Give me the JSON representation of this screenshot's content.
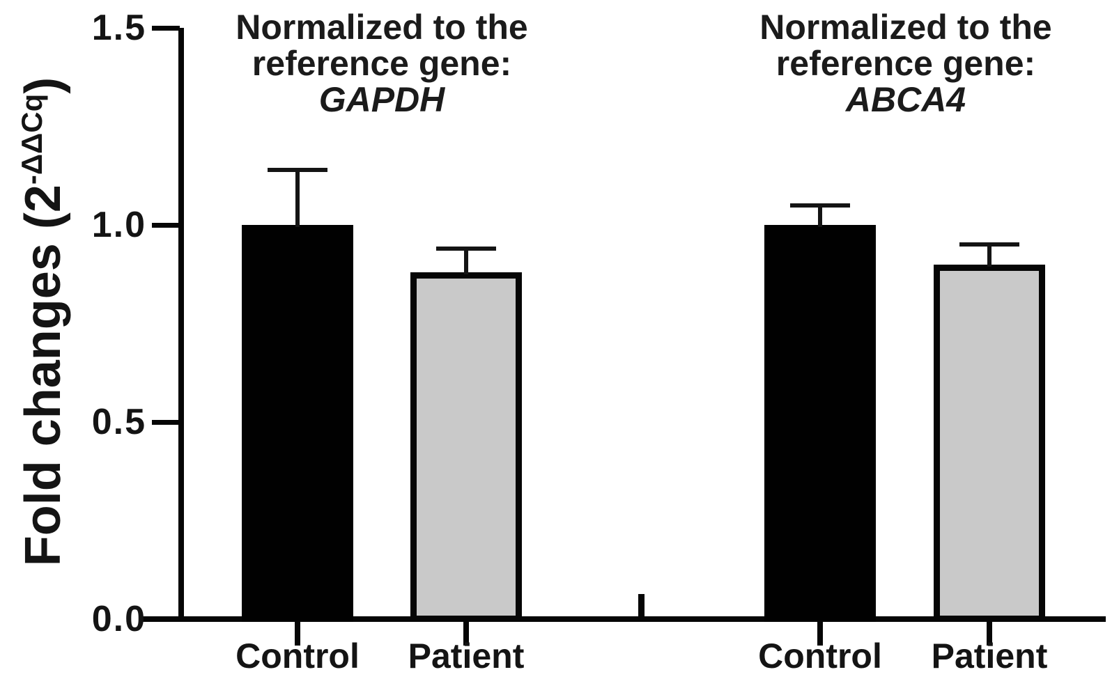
{
  "figure": {
    "background": "#ffffff",
    "text_color": "#141414",
    "ylabel": {
      "prefix": "Fold changes (2",
      "superscript": "-ΔΔCq",
      "suffix": ")"
    }
  },
  "chart_data": {
    "type": "bar",
    "title": "",
    "xlabel": "",
    "ylabel": "Fold changes (2^-ΔΔCq)",
    "ylim": [
      0,
      1.5
    ],
    "yticks": [
      {
        "value": 1.5,
        "label": "1.5"
      },
      {
        "value": 1.0,
        "label": "1.0"
      },
      {
        "value": 0.5,
        "label": "0.5"
      },
      {
        "value": 0.0,
        "label": "0.0"
      }
    ],
    "grid": false,
    "legend_position": "none",
    "error_bars": "upper whisker with cap",
    "bar_colors": {
      "Control": "#010101",
      "Patient": "#c9c9c9"
    },
    "groups": [
      {
        "title_lines": [
          "Normalized to the",
          "reference gene:"
        ],
        "reference_gene": "GAPDH",
        "bars": [
          {
            "category": "Control",
            "value": 1.0,
            "error_top": 1.14,
            "fill": "#010101"
          },
          {
            "category": "Patient",
            "value": 0.88,
            "error_top": 0.94,
            "fill": "#c9c9c9"
          }
        ]
      },
      {
        "title_lines": [
          "Normalized to the",
          "reference gene:"
        ],
        "reference_gene": "ABCA4",
        "bars": [
          {
            "category": "Control",
            "value": 1.0,
            "error_top": 1.05,
            "fill": "#010101"
          },
          {
            "category": "Patient",
            "value": 0.9,
            "error_top": 0.95,
            "fill": "#c9c9c9"
          }
        ]
      }
    ]
  }
}
